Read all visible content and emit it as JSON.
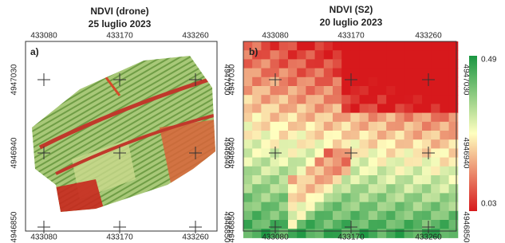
{
  "panels": [
    {
      "title": "NDVI (drone)",
      "date": "25 luglio 2023",
      "letter": "a)",
      "x_labels": [
        "433080",
        "433170",
        "433260"
      ],
      "y_labels": [
        "4947030",
        "4946940",
        "4946850"
      ]
    },
    {
      "title": "NDVI (S2)",
      "date": "20 luglio 2023",
      "letter": "b)",
      "x_labels": [
        "433080",
        "433170",
        "433260"
      ],
      "y_labels": [
        "4947030",
        "4946940",
        "4946850"
      ]
    }
  ],
  "colorbar": {
    "max": "0.49",
    "min": "0.03"
  }
}
